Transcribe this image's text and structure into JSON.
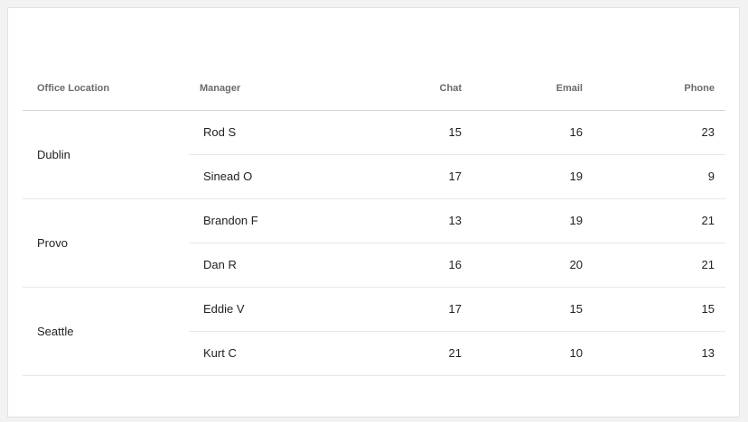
{
  "table": {
    "headers": [
      "Office Location",
      "Manager",
      "Chat",
      "Email",
      "Phone"
    ],
    "groups": [
      {
        "location": "Dublin",
        "rows": [
          {
            "manager": "Rod S",
            "chat": "15",
            "email": "16",
            "phone": "23"
          },
          {
            "manager": "Sinead O",
            "chat": "17",
            "email": "19",
            "phone": "9"
          }
        ]
      },
      {
        "location": "Provo",
        "rows": [
          {
            "manager": "Brandon F",
            "chat": "13",
            "email": "19",
            "phone": "21"
          },
          {
            "manager": "Dan R",
            "chat": "16",
            "email": "20",
            "phone": "21"
          }
        ]
      },
      {
        "location": "Seattle",
        "rows": [
          {
            "manager": "Eddie V",
            "chat": "17",
            "email": "15",
            "phone": "15"
          },
          {
            "manager": "Kurt C",
            "chat": "21",
            "email": "10",
            "phone": "13"
          }
        ]
      }
    ]
  }
}
